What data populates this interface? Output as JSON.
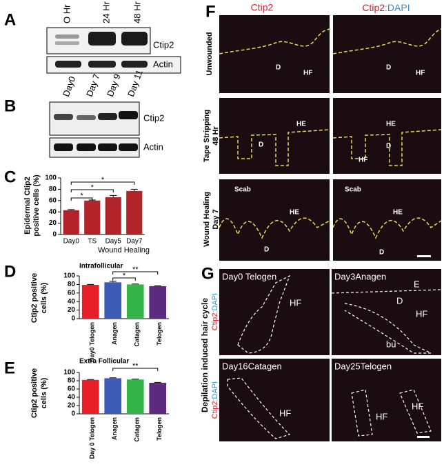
{
  "panel_labels": [
    "A",
    "B",
    "C",
    "D",
    "E",
    "F",
    "G"
  ],
  "blot_a": {
    "lanes": [
      "O Hr",
      "24 Hr",
      "48 Hr"
    ],
    "target": "Ctip2",
    "control": "Actin"
  },
  "blot_b": {
    "lanes": [
      "Day0",
      "Day 7",
      "Day 9",
      "Day 11"
    ],
    "target": "Ctip2",
    "control": "Actin"
  },
  "chart_data": [
    {
      "type": "bar",
      "ylabel": [
        "Epidermal Ctip2",
        "positive cells (%)"
      ],
      "categories": [
        "Day0",
        "TS",
        "Day5",
        "Day7"
      ],
      "values": [
        43,
        60,
        66,
        77
      ],
      "errors": [
        1,
        1,
        3,
        3
      ],
      "colors": [
        "#b3232a",
        "#b3232a",
        "#b3232a",
        "#b3232a"
      ],
      "ylim": [
        0,
        100
      ],
      "yticks": [
        0,
        20,
        40,
        60,
        80,
        100
      ],
      "significance": [
        "*",
        "*",
        "*"
      ],
      "group_label": "Wound Healing"
    },
    {
      "type": "bar",
      "title": "Intrafollicular",
      "ylabel": [
        "Ctip2 positive",
        "cells (%)"
      ],
      "categories": [
        "Day0 Telogen",
        "Anagen",
        "Catagen",
        "Telogen"
      ],
      "values": [
        79,
        85,
        80,
        76
      ],
      "errors": [
        1,
        2,
        1,
        1
      ],
      "colors": [
        "#e8202a",
        "#3b5bb5",
        "#35b44a",
        "#5b2a7e"
      ],
      "ylim": [
        0,
        100
      ],
      "yticks": [
        0,
        20,
        40,
        60,
        80,
        100
      ],
      "significance": [
        "*",
        "**"
      ]
    },
    {
      "type": "bar",
      "title": "Extra Follicular",
      "ylabel": [
        "Ctip2 positive",
        "cells (%)"
      ],
      "categories": [
        "Day 0 Telogen",
        "Anagen",
        "Catagen",
        "Telogen"
      ],
      "values": [
        82,
        86,
        83,
        75
      ],
      "errors": [
        1,
        1,
        1,
        1
      ],
      "colors": [
        "#e8202a",
        "#3b5bb5",
        "#35b44a",
        "#5b2a7e"
      ],
      "ylim": [
        0,
        100
      ],
      "yticks": [
        0,
        20,
        40,
        60,
        80,
        100
      ],
      "significance": [
        "**"
      ]
    }
  ],
  "panel_f": {
    "stain": "Ctip2",
    "counterstain": ":DAPI",
    "rows": [
      [
        "Unwounded"
      ],
      [
        "Tape Stripping",
        "48 Hr"
      ],
      [
        "Wound Healing",
        "Day 7"
      ]
    ],
    "labels": [
      "D",
      "HF",
      "D",
      "HF",
      "HE",
      "D",
      "HE",
      "D",
      "HF",
      "Scab",
      "HE",
      "D",
      "Scab",
      "HE",
      "D"
    ]
  },
  "panel_g": {
    "side": "Depilation induced hair cycle",
    "stain": "Ctip2",
    "counterstain": ":DAPI",
    "titles": [
      "Day0 Telogen",
      "Day3Anagen",
      "Day16Catagen",
      "Day25Telogen"
    ],
    "labels": [
      "HF",
      "E",
      "D",
      "HF",
      "bu",
      "HF",
      "HF",
      "HF"
    ]
  }
}
